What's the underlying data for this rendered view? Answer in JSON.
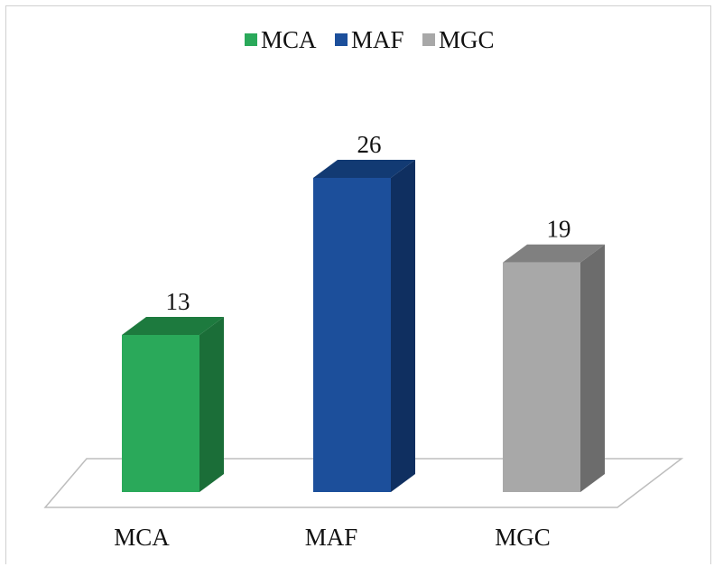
{
  "chart_data": {
    "type": "bar",
    "categories": [
      "MCA",
      "MAF",
      "MGC"
    ],
    "values": [
      13,
      26,
      19
    ],
    "title": "",
    "xlabel": "",
    "ylabel": "",
    "ylim": [
      0,
      26
    ],
    "grid": false,
    "legend_position": "top",
    "three_d": true,
    "legend": [
      "MCA",
      "MAF",
      "MGC"
    ],
    "colors": {
      "MCA": {
        "front": "#2aa95a",
        "side": "#1b6e38",
        "top": "#1d7a3e"
      },
      "MAF": {
        "front": "#1c4f9b",
        "side": "#0f2f60",
        "top": "#123a73"
      },
      "MGC": {
        "front": "#a8a8a8",
        "side": "#6c6c6c",
        "top": "#808080"
      }
    }
  }
}
